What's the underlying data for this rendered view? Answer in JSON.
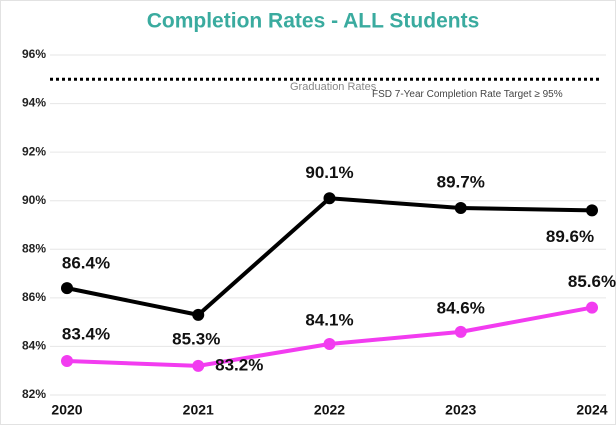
{
  "chart_data": {
    "type": "line",
    "title": "Completion Rates - ALL Students",
    "categories": [
      "2020",
      "2021",
      "2022",
      "2023",
      "2024"
    ],
    "series": [
      {
        "color": "#000000",
        "values": [
          86.4,
          85.3,
          90.1,
          89.7,
          89.6
        ],
        "value_labels": [
          "86.4%",
          "85.3%",
          "90.1%",
          "89.7%",
          "89.6%"
        ]
      },
      {
        "color": "#f23cf0",
        "values": [
          83.4,
          83.2,
          84.1,
          84.6,
          85.6
        ],
        "value_labels": [
          "83.4%",
          "83.2%",
          "84.1%",
          "84.6%",
          "85.6%"
        ]
      }
    ],
    "ylim": [
      82,
      96
    ],
    "yticks": [
      {
        "value": 82,
        "label": "82%"
      },
      {
        "value": 84,
        "label": "84%"
      },
      {
        "value": 86,
        "label": "86%"
      },
      {
        "value": 88,
        "label": "88%"
      },
      {
        "value": 90,
        "label": "90%"
      },
      {
        "value": 92,
        "label": "92%"
      },
      {
        "value": 94,
        "label": "94%"
      },
      {
        "value": 96,
        "label": "96%"
      }
    ],
    "grid": true,
    "target": {
      "value": 95,
      "labels": [
        "Graduation Rates",
        "FSD 7-Year Completion Rate Target ≥ 95%"
      ]
    }
  }
}
